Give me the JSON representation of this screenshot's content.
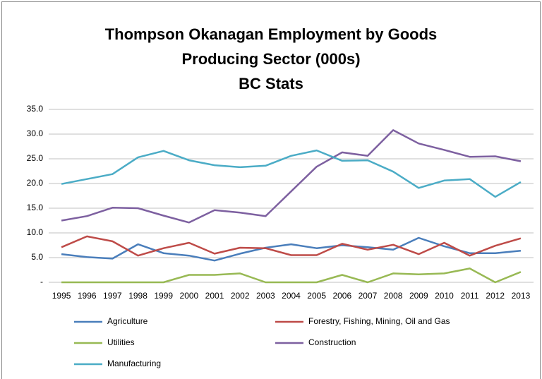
{
  "chart_data": {
    "type": "line",
    "title": [
      "Thompson Okanagan Employment by Goods",
      "Producing Sector (000s)",
      "BC Stats"
    ],
    "categories": [
      "1995",
      "1996",
      "1997",
      "1998",
      "1999",
      "2000",
      "2001",
      "2002",
      "2003",
      "2004",
      "2005",
      "2006",
      "2007",
      "2008",
      "2009",
      "2010",
      "2011",
      "2012",
      "2013"
    ],
    "series": [
      {
        "name": "Agriculture",
        "color": "#4a7ebb",
        "values": [
          5.7,
          5.1,
          4.8,
          7.7,
          5.9,
          5.4,
          4.4,
          5.8,
          7.0,
          7.7,
          6.9,
          7.5,
          7.1,
          6.6,
          9.0,
          7.3,
          5.9,
          5.9,
          6.4
        ]
      },
      {
        "name": "Forestry, Fishing, Mining, Oil and Gas",
        "color": "#be4b48",
        "values": [
          7.1,
          9.3,
          8.3,
          5.4,
          6.9,
          8.0,
          5.8,
          7.0,
          6.9,
          5.5,
          5.5,
          7.8,
          6.6,
          7.6,
          5.7,
          8.0,
          5.4,
          7.4,
          8.9
        ]
      },
      {
        "name": "Utilities",
        "color": "#98b954",
        "values": [
          0,
          0,
          0,
          0,
          0,
          1.5,
          1.5,
          1.8,
          0,
          0,
          0,
          1.5,
          0,
          1.8,
          1.6,
          1.8,
          2.8,
          0,
          2.1
        ]
      },
      {
        "name": "Construction",
        "color": "#7d60a0",
        "values": [
          12.5,
          13.4,
          15.1,
          15.0,
          13.5,
          12.1,
          14.6,
          14.1,
          13.4,
          18.4,
          23.4,
          26.3,
          25.6,
          30.8,
          28.1,
          26.8,
          25.4,
          25.5,
          24.5
        ]
      },
      {
        "name": "Manufacturing",
        "color": "#4bacc6",
        "values": [
          19.9,
          20.9,
          21.9,
          25.3,
          26.6,
          24.7,
          23.7,
          23.3,
          23.6,
          25.6,
          26.7,
          24.6,
          24.7,
          22.4,
          19.1,
          20.6,
          20.9,
          17.3,
          20.3
        ]
      }
    ],
    "ylim": [
      0,
      35
    ],
    "yticks": [
      {
        "value": 0,
        "label": "-"
      },
      {
        "value": 5,
        "label": "5.0"
      },
      {
        "value": 10,
        "label": "10.0"
      },
      {
        "value": 15,
        "label": "15.0"
      },
      {
        "value": 20,
        "label": "20.0"
      },
      {
        "value": 25,
        "label": "25.0"
      },
      {
        "value": 30,
        "label": "30.0"
      },
      {
        "value": 35,
        "label": "35.0"
      }
    ],
    "grid": true,
    "legend": "bottom"
  }
}
